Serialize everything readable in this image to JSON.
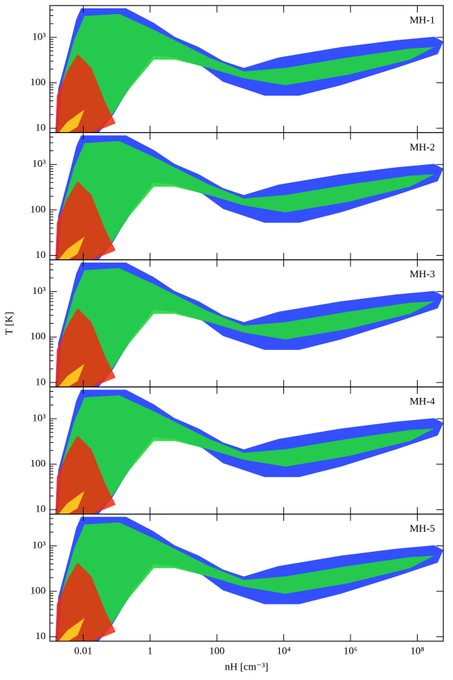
{
  "chart_data": [
    {
      "type": "heatmap",
      "panel_label": "MH-1",
      "xlim": [
        0.001,
        600000000
      ],
      "ylim": [
        8,
        5000
      ],
      "xticks": [
        0.01,
        1,
        100,
        {
          "value": 10000,
          "label": "10⁴"
        },
        {
          "value": 1000000,
          "label": "10⁶"
        },
        {
          "value": 100000000,
          "label": "10⁸"
        }
      ],
      "yticks": [
        10,
        100,
        {
          "value": 1000,
          "label": "10³"
        }
      ]
    },
    {
      "type": "heatmap",
      "panel_label": "MH-2",
      "xlim": [
        0.001,
        600000000
      ],
      "ylim": [
        8,
        5000
      ],
      "xticks": [
        0.01,
        1,
        100,
        {
          "value": 10000,
          "label": "10⁴"
        },
        {
          "value": 1000000,
          "label": "10⁶"
        },
        {
          "value": 100000000,
          "label": "10⁸"
        }
      ],
      "yticks": [
        10,
        100,
        {
          "value": 1000,
          "label": "10³"
        }
      ]
    },
    {
      "type": "heatmap",
      "panel_label": "MH-3",
      "y_label": "T [K]",
      "xlim": [
        0.001,
        600000000
      ],
      "ylim": [
        8,
        5000
      ],
      "xticks": [
        0.01,
        1,
        100,
        {
          "value": 10000,
          "label": "10⁴"
        },
        {
          "value": 1000000,
          "label": "10⁶"
        },
        {
          "value": 100000000,
          "label": "10⁸"
        }
      ],
      "yticks": [
        10,
        100,
        {
          "value": 1000,
          "label": "10³"
        }
      ]
    },
    {
      "type": "heatmap",
      "panel_label": "MH-4",
      "xlim": [
        0.001,
        600000000
      ],
      "ylim": [
        8,
        5000
      ],
      "xticks": [
        0.01,
        1,
        100,
        {
          "value": 10000,
          "label": "10⁴"
        },
        {
          "value": 1000000,
          "label": "10⁶"
        },
        {
          "value": 100000000,
          "label": "10⁸"
        }
      ],
      "yticks": [
        10,
        100,
        {
          "value": 1000,
          "label": "10³"
        }
      ]
    },
    {
      "type": "heatmap",
      "panel_label": "MH-5",
      "x_label": "nH [cm⁻³]",
      "xlim": [
        0.001,
        600000000
      ],
      "ylim": [
        8,
        5000
      ],
      "xticks": [
        0.01,
        1,
        100,
        {
          "value": 10000,
          "label": "10⁴"
        },
        {
          "value": 1000000,
          "label": "10⁶"
        },
        {
          "value": 100000000,
          "label": "10⁸"
        }
      ],
      "yticks": [
        10,
        100,
        {
          "value": 1000,
          "label": "10³"
        }
      ]
    }
  ]
}
